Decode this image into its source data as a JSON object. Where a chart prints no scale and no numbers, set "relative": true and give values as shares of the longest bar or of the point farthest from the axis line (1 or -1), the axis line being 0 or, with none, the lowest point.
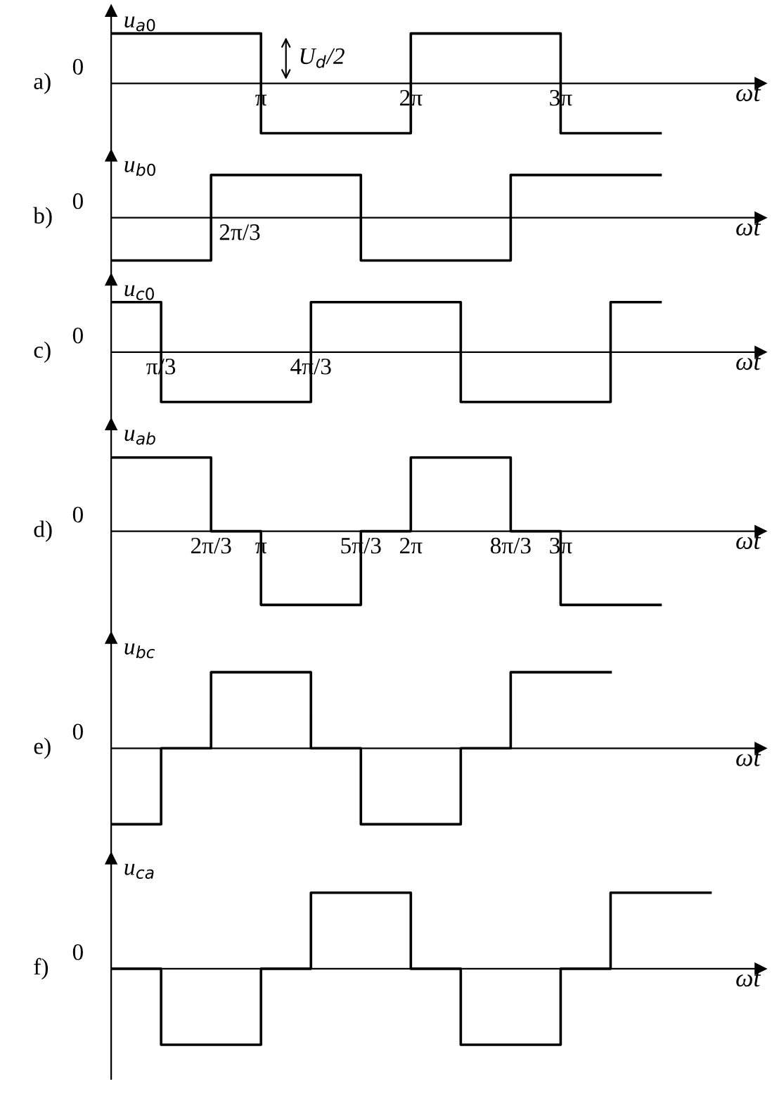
{
  "chart_data": [
    {
      "type": "step",
      "title": "a)",
      "ylabel": "u$_{a0}$",
      "xlabel": "ωt",
      "relative": true,
      "color": "#000000",
      "line_style": "solid",
      "categories": [
        null,
        null,
        null,
        "π",
        null,
        null,
        "2π",
        null,
        null,
        "3π",
        null,
        null
      ],
      "values": [
        1,
        1,
        1,
        -1,
        -1,
        -1,
        1,
        1,
        1,
        -1,
        -1,
        -1
      ],
      "annotations": [
        "0",
        "U$_{d}$/2"
      ]
    },
    {
      "type": "step",
      "title": "b)",
      "ylabel": "u$_{b0}$",
      "xlabel": "ωt",
      "relative": true,
      "color": "#000000",
      "line_style": "solid",
      "categories": [
        null,
        null,
        null,
        null,
        null,
        null,
        null,
        null,
        null,
        null,
        null,
        null
      ],
      "values": [
        -1,
        -1,
        1,
        1,
        1,
        -1,
        -1,
        -1,
        1,
        1,
        1,
        1
      ],
      "annotations": [
        "0",
        "2π/3"
      ]
    },
    {
      "type": "step",
      "title": "c)",
      "ylabel": "u$_{c0}$",
      "xlabel": "ωt",
      "relative": true,
      "color": "#000000",
      "line_style": "solid",
      "categories": [
        null,
        "π/3",
        null,
        null,
        "4π/3",
        null,
        null,
        null,
        null,
        null,
        null,
        null
      ],
      "values": [
        1,
        -1,
        -1,
        -1,
        1,
        1,
        1,
        -1,
        -1,
        -1,
        1,
        1
      ],
      "annotations": [
        "0"
      ]
    },
    {
      "type": "step",
      "title": "d)",
      "ylabel": "u$_{ab}$",
      "xlabel": "ωt",
      "relative": true,
      "color": "#000000",
      "line_style": "solid",
      "categories": [
        null,
        null,
        "2π/3",
        "π",
        null,
        "5π/3",
        "2π",
        null,
        "8π/3",
        "3π",
        null,
        null
      ],
      "values": [
        1,
        1,
        0,
        -1,
        -1,
        0,
        1,
        1,
        0,
        -1,
        -1,
        -1
      ],
      "annotations": [
        "0"
      ]
    },
    {
      "type": "step",
      "title": "e)",
      "ylabel": "u$_{bc}$",
      "xlabel": "ωt",
      "relative": true,
      "color": "#000000",
      "line_style": "solid",
      "categories": [
        null,
        null,
        null,
        null,
        null,
        null,
        null,
        null,
        null,
        null,
        null
      ],
      "values": [
        -1,
        0,
        1,
        1,
        0,
        -1,
        -1,
        0,
        1,
        1,
        1
      ],
      "annotations": [
        "0"
      ]
    },
    {
      "type": "step",
      "title": "f)",
      "ylabel": "u$_{ca}$",
      "xlabel": "ωt",
      "relative": true,
      "color": "#000000",
      "line_style": "solid",
      "categories": [
        null,
        null,
        null,
        null,
        null,
        null,
        null,
        null,
        null,
        null,
        null,
        null,
        null
      ],
      "values": [
        0,
        -1,
        -1,
        0,
        1,
        1,
        0,
        -1,
        -1,
        0,
        1,
        1,
        1
      ],
      "annotations": [
        "0"
      ]
    }
  ]
}
